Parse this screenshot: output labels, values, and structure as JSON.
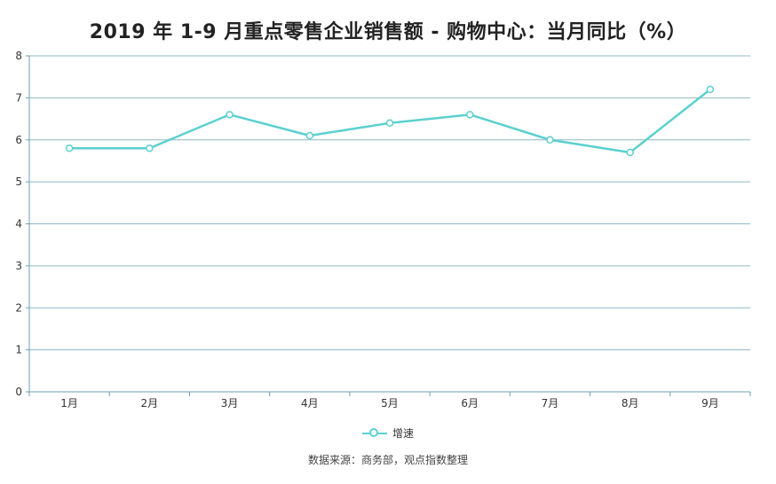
{
  "chart_data": {
    "type": "line",
    "title": "2019 年 1-9 月重点零售企业销售额 - 购物中心：当月同比（%）",
    "categories": [
      "1月",
      "2月",
      "3月",
      "4月",
      "5月",
      "6月",
      "7月",
      "8月",
      "9月"
    ],
    "series": [
      {
        "name": "增速",
        "values": [
          5.8,
          5.8,
          6.6,
          6.1,
          6.4,
          6.6,
          6.0,
          5.7,
          7.2
        ]
      }
    ],
    "ylim": [
      0,
      8
    ],
    "yticks": [
      0,
      1,
      2,
      3,
      4,
      5,
      6,
      7,
      8
    ],
    "grid": true,
    "legend": "bottom",
    "line_color": "#5bd0cf",
    "grid_color": "#8fb8c4"
  },
  "source": "数据来源：商务部，观点指数整理"
}
